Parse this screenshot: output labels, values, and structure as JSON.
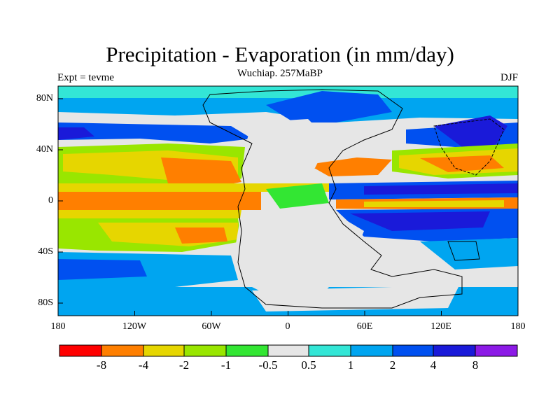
{
  "title": "Precipitation - Evaporation (in mm/day)",
  "subtitle": "Wuchiap. 257MaBP",
  "left_string": "Expt = tevme",
  "right_string": "DJF",
  "map": {
    "projection": "cylindrical-equidistant",
    "lon_range": [
      -180,
      180
    ],
    "lat_range": [
      -90,
      90
    ],
    "x_ticks": [
      "180",
      "120W",
      "60W",
      "0",
      "60E",
      "120E",
      "180"
    ],
    "y_ticks": [
      "80N",
      "40N",
      "0",
      "40S",
      "80S"
    ],
    "continent_outline": "Pangea (Late Permian)"
  },
  "colorbar": {
    "colors": [
      "#ff0000",
      "#ff7f00",
      "#e6d600",
      "#99e600",
      "#33e633",
      "#e6e6e6",
      "#33e6d6",
      "#00a5f0",
      "#0050f0",
      "#1a1ad9",
      "#8c1ae6"
    ],
    "labels": [
      "-8",
      "-4",
      "-2",
      "-1",
      "-0.5",
      "0.5",
      "1",
      "2",
      "4",
      "8"
    ]
  }
}
